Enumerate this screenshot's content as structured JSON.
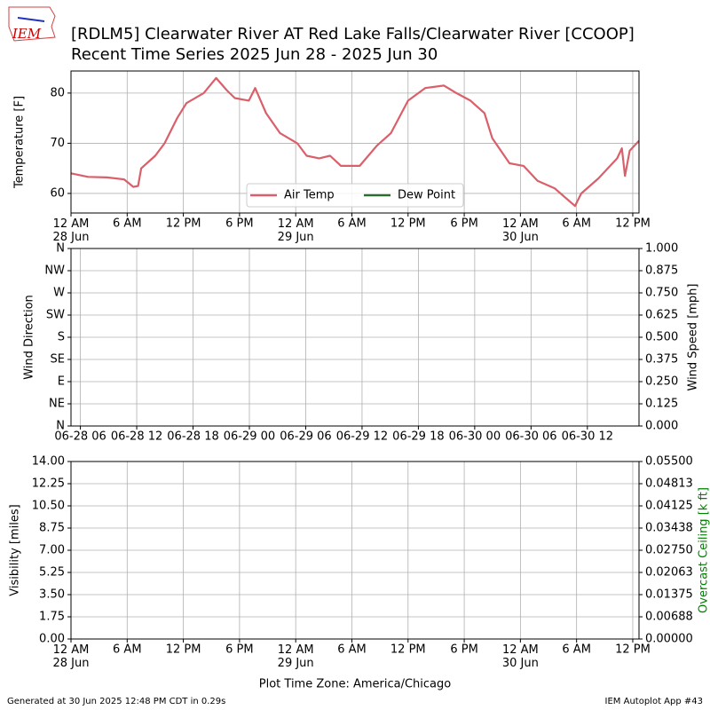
{
  "logo": "IEM",
  "footer": {
    "left": "Generated at 30 Jun 2025 12:48 PM CDT in 0.29s",
    "right": "IEM Autoplot App #43"
  },
  "chart_data": [
    {
      "type": "line",
      "title": "[RDLM5] Clearwater River  AT Red Lake Falls/Clearwater River [CCOOP]",
      "subtitle": "Recent Time Series 2025 Jun 28 - 2025 Jun 30",
      "ylabel": "Temperature [F]",
      "x": [
        "2025-06-28T00:00",
        "2025-06-28T01:50",
        "2025-06-28T03:50",
        "2025-06-28T05:40",
        "2025-06-28T06:40",
        "2025-06-28T07:10",
        "2025-06-28T07:30",
        "2025-06-28T09:00",
        "2025-06-28T10:00",
        "2025-06-28T11:20",
        "2025-06-28T12:20",
        "2025-06-28T14:10",
        "2025-06-28T15:30",
        "2025-06-28T16:40",
        "2025-06-28T17:30",
        "2025-06-28T19:00",
        "2025-06-28T19:40",
        "2025-06-28T20:50",
        "2025-06-28T22:20",
        "2025-06-29T00:10",
        "2025-06-29T01:10",
        "2025-06-29T02:30",
        "2025-06-29T03:40",
        "2025-06-29T04:50",
        "2025-06-29T06:50",
        "2025-06-29T08:40",
        "2025-06-29T10:10",
        "2025-06-29T12:00",
        "2025-06-29T13:50",
        "2025-06-29T15:50",
        "2025-06-29T17:10",
        "2025-06-29T18:40",
        "2025-06-29T20:10",
        "2025-06-29T21:00",
        "2025-06-29T22:50",
        "2025-06-30T00:20",
        "2025-06-30T01:50",
        "2025-06-30T03:40",
        "2025-06-30T05:50",
        "2025-06-30T06:30",
        "2025-06-30T08:20",
        "2025-06-30T10:20",
        "2025-06-30T10:50",
        "2025-06-30T11:10",
        "2025-06-30T11:40",
        "2025-06-30T12:40"
      ],
      "series": [
        {
          "name": "Air Temp",
          "color": "#d9606a",
          "values": [
            64,
            63.3,
            63.2,
            62.8,
            61.3,
            61.5,
            65,
            67.5,
            70,
            75,
            78,
            80,
            83,
            80.5,
            79,
            78.5,
            81,
            76,
            72,
            70,
            67.5,
            67,
            67.5,
            65.5,
            65.5,
            69.5,
            72,
            78.5,
            81,
            81.5,
            80,
            78.5,
            76,
            71,
            66,
            65.5,
            62.5,
            61,
            57.5,
            60,
            63,
            67,
            69,
            63.5,
            68.5,
            70.5
          ]
        },
        {
          "name": "Dew Point",
          "color": "#2e6b30",
          "values": [
            null,
            null,
            null,
            null,
            null,
            null,
            null,
            null,
            null,
            null,
            null,
            null,
            null,
            null,
            null,
            null,
            null,
            null,
            null,
            null,
            null,
            null,
            null,
            null,
            null,
            null,
            null,
            null,
            null,
            null,
            null,
            null,
            null,
            null,
            null,
            null,
            null,
            null,
            null,
            null,
            null,
            null,
            null,
            null,
            null,
            null
          ]
        }
      ],
      "xlim": [
        "2025-06-28T00:00",
        "2025-06-30T12:40"
      ],
      "xticks": [
        {
          "value": "2025-06-28T00:00",
          "label": "12 AM\n28 Jun"
        },
        {
          "value": "2025-06-28T06:00",
          "label": "6 AM"
        },
        {
          "value": "2025-06-28T12:00",
          "label": "12 PM"
        },
        {
          "value": "2025-06-28T18:00",
          "label": "6 PM"
        },
        {
          "value": "2025-06-29T00:00",
          "label": "12 AM\n29 Jun"
        },
        {
          "value": "2025-06-29T06:00",
          "label": "6 AM"
        },
        {
          "value": "2025-06-29T12:00",
          "label": "12 PM"
        },
        {
          "value": "2025-06-29T18:00",
          "label": "6 PM"
        },
        {
          "value": "2025-06-30T00:00",
          "label": "12 AM\n30 Jun"
        },
        {
          "value": "2025-06-30T06:00",
          "label": "6 AM"
        },
        {
          "value": "2025-06-30T12:00",
          "label": "12 PM"
        }
      ],
      "ylim": [
        56.1,
        84.4
      ],
      "yticks": [
        60,
        70,
        80
      ],
      "grid": true,
      "legend": "lower center"
    },
    {
      "type": "line",
      "ylabel": "Wind Direction",
      "y2label": "Wind Speed [mph]",
      "xlim": [
        "2025-06-28T05:00",
        "2025-06-30T17:30"
      ],
      "xticks": [
        {
          "value": "2025-06-28T06:00",
          "label": "06-28 06"
        },
        {
          "value": "2025-06-28T12:00",
          "label": "06-28 12"
        },
        {
          "value": "2025-06-28T18:00",
          "label": "06-28 18"
        },
        {
          "value": "2025-06-29T00:00",
          "label": "06-29 00"
        },
        {
          "value": "2025-06-29T06:00",
          "label": "06-29 06"
        },
        {
          "value": "2025-06-29T12:00",
          "label": "06-29 12"
        },
        {
          "value": "2025-06-29T18:00",
          "label": "06-29 18"
        },
        {
          "value": "2025-06-30T00:00",
          "label": "06-30 00"
        },
        {
          "value": "2025-06-30T06:00",
          "label": "06-30 06"
        },
        {
          "value": "2025-06-30T12:00",
          "label": "06-30 12"
        }
      ],
      "ylim": [
        0,
        360
      ],
      "yticks": [
        {
          "value": 0,
          "label": "N"
        },
        {
          "value": 45,
          "label": "NE"
        },
        {
          "value": 90,
          "label": "E"
        },
        {
          "value": 135,
          "label": "SE"
        },
        {
          "value": 180,
          "label": "S"
        },
        {
          "value": 225,
          "label": "SW"
        },
        {
          "value": 270,
          "label": "W"
        },
        {
          "value": 315,
          "label": "NW"
        },
        {
          "value": 360,
          "label": "N"
        }
      ],
      "y2lim": [
        0,
        1
      ],
      "y2ticks": [
        {
          "value": 0,
          "label": "0.000"
        },
        {
          "value": 0.125,
          "label": "0.125"
        },
        {
          "value": 0.25,
          "label": "0.250"
        },
        {
          "value": 0.375,
          "label": "0.375"
        },
        {
          "value": 0.5,
          "label": "0.500"
        },
        {
          "value": 0.625,
          "label": "0.625"
        },
        {
          "value": 0.75,
          "label": "0.750"
        },
        {
          "value": 0.875,
          "label": "0.875"
        },
        {
          "value": 1,
          "label": "1.000"
        }
      ],
      "grid": true
    },
    {
      "type": "line",
      "ylabel": "Visibility [miles]",
      "y2label": "Overcast Ceiling [k ft]",
      "y2label_color": "#008000",
      "xlabel": "Plot Time Zone: America/Chicago",
      "xlim": [
        "2025-06-28T00:00",
        "2025-06-30T12:40"
      ],
      "xticks": [
        {
          "value": "2025-06-28T00:00",
          "label": "12 AM\n28 Jun"
        },
        {
          "value": "2025-06-28T06:00",
          "label": "6 AM"
        },
        {
          "value": "2025-06-28T12:00",
          "label": "12 PM"
        },
        {
          "value": "2025-06-28T18:00",
          "label": "6 PM"
        },
        {
          "value": "2025-06-29T00:00",
          "label": "12 AM\n29 Jun"
        },
        {
          "value": "2025-06-29T06:00",
          "label": "6 AM"
        },
        {
          "value": "2025-06-29T12:00",
          "label": "12 PM"
        },
        {
          "value": "2025-06-29T18:00",
          "label": "6 PM"
        },
        {
          "value": "2025-06-30T00:00",
          "label": "12 AM\n30 Jun"
        },
        {
          "value": "2025-06-30T06:00",
          "label": "6 AM"
        },
        {
          "value": "2025-06-30T12:00",
          "label": "12 PM"
        }
      ],
      "ylim": [
        0,
        14
      ],
      "yticks": [
        {
          "value": 0,
          "label": "0.00"
        },
        {
          "value": 1.75,
          "label": "1.75"
        },
        {
          "value": 3.5,
          "label": "3.50"
        },
        {
          "value": 5.25,
          "label": "5.25"
        },
        {
          "value": 7,
          "label": "7.00"
        },
        {
          "value": 8.75,
          "label": "8.75"
        },
        {
          "value": 10.5,
          "label": "10.50"
        },
        {
          "value": 12.25,
          "label": "12.25"
        },
        {
          "value": 14,
          "label": "14.00"
        }
      ],
      "y2lim": [
        0,
        0.055
      ],
      "y2ticks": [
        {
          "value": 0,
          "label": "0.00000"
        },
        {
          "value": 0.006875,
          "label": "0.00688"
        },
        {
          "value": 0.01375,
          "label": "0.01375"
        },
        {
          "value": 0.020625,
          "label": "0.02063"
        },
        {
          "value": 0.0275,
          "label": "0.02750"
        },
        {
          "value": 0.034375,
          "label": "0.03438"
        },
        {
          "value": 0.04125,
          "label": "0.04125"
        },
        {
          "value": 0.048125,
          "label": "0.04813"
        },
        {
          "value": 0.055,
          "label": "0.05500"
        }
      ],
      "grid": true
    }
  ]
}
